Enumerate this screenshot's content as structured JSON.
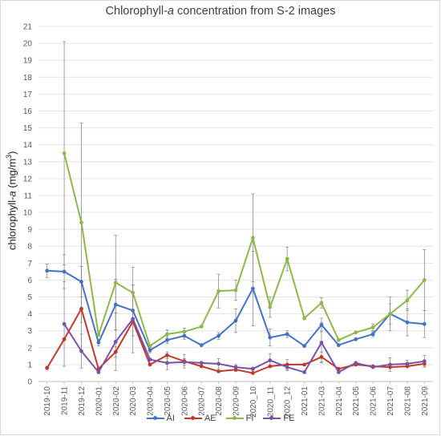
{
  "chart_data": {
    "type": "line",
    "title_parts": [
      "Chlorophyll-",
      "a",
      " concentration from S-2 images"
    ],
    "ylabel_parts": [
      "chlorophyll-",
      "a",
      " (mg/m",
      "3",
      ")"
    ],
    "ylim": [
      0,
      21
    ],
    "ytick_step": 1,
    "yticks": [
      "0",
      "1",
      "2",
      "3",
      "4",
      "5",
      "6",
      "7",
      "8",
      "9",
      "10",
      "11",
      "12",
      "13",
      "14",
      "15",
      "16",
      "17",
      "18",
      "19",
      "20",
      "21"
    ],
    "categories": [
      "2019-10",
      "2019-11",
      "2019-12",
      "2020-01",
      "2020-02",
      "2020-03",
      "2020-04",
      "2020-05",
      "2020-06",
      "2020-07",
      "2020-08",
      "2020-09",
      "2020_10",
      "2020_11",
      "2020_12",
      "2021-01",
      "2021-03",
      "2021-04",
      "2021-05",
      "2021-06",
      "2021-07",
      "2021-08",
      "2021-09"
    ],
    "grid": true,
    "legend_position": "bottom",
    "series": [
      {
        "name": "AI",
        "color": "#4472c4",
        "values": [
          6.55,
          6.5,
          5.9,
          2.3,
          4.55,
          4.2,
          1.85,
          2.45,
          2.7,
          2.15,
          2.7,
          3.6,
          5.5,
          2.6,
          2.8,
          2.1,
          3.35,
          2.15,
          2.5,
          2.8,
          4.0,
          3.5,
          3.4
        ],
        "errors": [
          0.4,
          1.0,
          0.9,
          0.2,
          1.5,
          1.5,
          0.15,
          0.2,
          0.2,
          0.0,
          0.2,
          0.7,
          2.2,
          0.5,
          0.2,
          0.0,
          0.4,
          0.0,
          0.0,
          0.15,
          0.6,
          0.8,
          0.8
        ]
      },
      {
        "name": "AE",
        "color": "#c0392b",
        "values": [
          0.8,
          2.5,
          4.3,
          0.75,
          1.75,
          3.55,
          1.0,
          1.55,
          1.2,
          0.9,
          0.6,
          0.7,
          0.5,
          0.9,
          1.0,
          1.0,
          1.45,
          0.75,
          1.0,
          0.9,
          0.85,
          0.9,
          1.05
        ],
        "errors": [
          0.1,
          0.0,
          2.5,
          0.0,
          0.3,
          0.0,
          0.0,
          0.2,
          0.4,
          0.0,
          0.0,
          0.1,
          0.0,
          0.0,
          0.3,
          0.0,
          0.3,
          0.0,
          0.0,
          0.0,
          0.0,
          0.0,
          0.15
        ]
      },
      {
        "name": "FI",
        "color": "#8db84a",
        "values": [
          null,
          13.5,
          9.4,
          2.75,
          5.85,
          5.25,
          2.1,
          2.8,
          2.95,
          3.25,
          5.35,
          5.4,
          8.5,
          4.4,
          7.25,
          3.75,
          4.65,
          2.45,
          2.9,
          3.2,
          4.0,
          4.8,
          6.0
        ],
        "errors": [
          0,
          6.6,
          5.9,
          0.0,
          2.8,
          1.5,
          0.0,
          0.25,
          0.2,
          0.0,
          1.0,
          0.6,
          2.6,
          0.6,
          0.7,
          0.1,
          0.3,
          0.0,
          0.0,
          0.2,
          1.0,
          0.6,
          1.8
        ]
      },
      {
        "name": "FE",
        "color": "#7b52a6",
        "values": [
          null,
          3.4,
          1.8,
          0.55,
          2.35,
          3.7,
          1.3,
          1.1,
          1.15,
          1.1,
          1.05,
          0.85,
          0.75,
          1.25,
          0.85,
          0.55,
          2.3,
          0.55,
          1.1,
          0.85,
          1.0,
          1.05,
          1.2
        ],
        "errors": [
          0,
          2.5,
          1.0,
          0.0,
          1.7,
          2.0,
          0.0,
          0.4,
          0.2,
          0.0,
          0.3,
          0.15,
          0.1,
          0.4,
          0.2,
          0.0,
          1.2,
          0.0,
          0.0,
          0.0,
          0.4,
          0.2,
          0.35
        ]
      }
    ]
  }
}
